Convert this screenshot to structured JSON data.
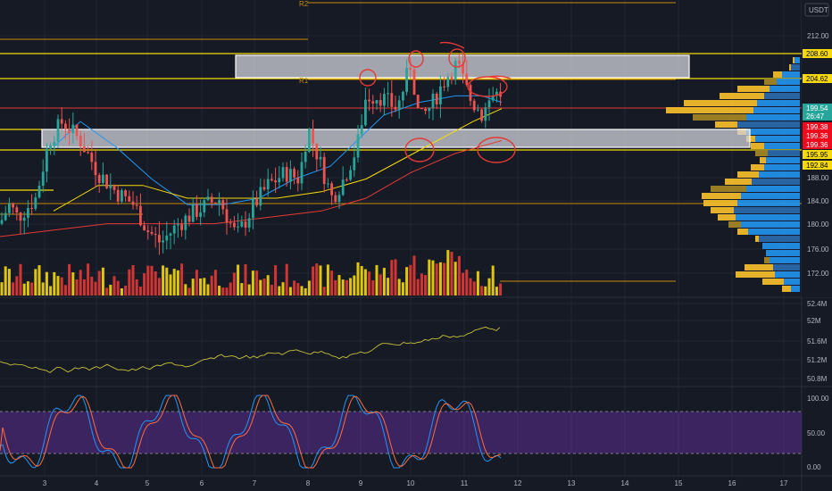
{
  "currency_label": "USDT",
  "pivot_labels": {
    "r2": "R2",
    "r1": "R1"
  },
  "price_axis": {
    "ticks": [
      "212.00",
      "188.00",
      "184.00",
      "180.00",
      "176.00",
      "172.00"
    ],
    "tags": [
      {
        "label": "208.60",
        "bg": "#f5d90a",
        "fg": "#000000"
      },
      {
        "label": "204.62",
        "bg": "#f5d90a",
        "fg": "#000000"
      },
      {
        "label": "199.54",
        "bg": "#26a69a",
        "fg": "#ffffff"
      },
      {
        "label": "26:47",
        "bg": "#26a69a",
        "fg": "#ffffff"
      },
      {
        "label": "199.38",
        "bg": "#f00a1e",
        "fg": "#ffffff"
      },
      {
        "label": "199.36",
        "bg": "#f00a1e",
        "fg": "#ffffff"
      },
      {
        "label": "199.36",
        "bg": "#f00a1e",
        "fg": "#ffffff"
      },
      {
        "label": "195.95",
        "bg": "#f5d90a",
        "fg": "#000000"
      },
      {
        "label": "192.84",
        "bg": "#f5d90a",
        "fg": "#000000"
      }
    ]
  },
  "obv_axis": {
    "ticks": [
      "52.4M",
      "52M",
      "51.6M",
      "51.2M",
      "50.8M"
    ]
  },
  "stoch_axis": {
    "ticks": [
      "100.00",
      "50.00",
      "0.00"
    ]
  },
  "time_axis": {
    "ticks": [
      "3",
      "4",
      "5",
      "6",
      "7",
      "8",
      "9",
      "10",
      "11",
      "12",
      "13",
      "14",
      "15",
      "16",
      "17"
    ]
  },
  "chart_data": {
    "type": "candlestick",
    "price_range": [
      168.5,
      215.0
    ],
    "sma_fast_color": "#2196f3",
    "sma_mid_color": "#f5d90a",
    "sma_slow_color": "#e53935",
    "up_color": "#26a69a",
    "down_color": "#ef5350",
    "volume_up_color": "#f5d90a",
    "volume_down_color": "#e53935",
    "stoch_band_color": "#5b2e91"
  }
}
